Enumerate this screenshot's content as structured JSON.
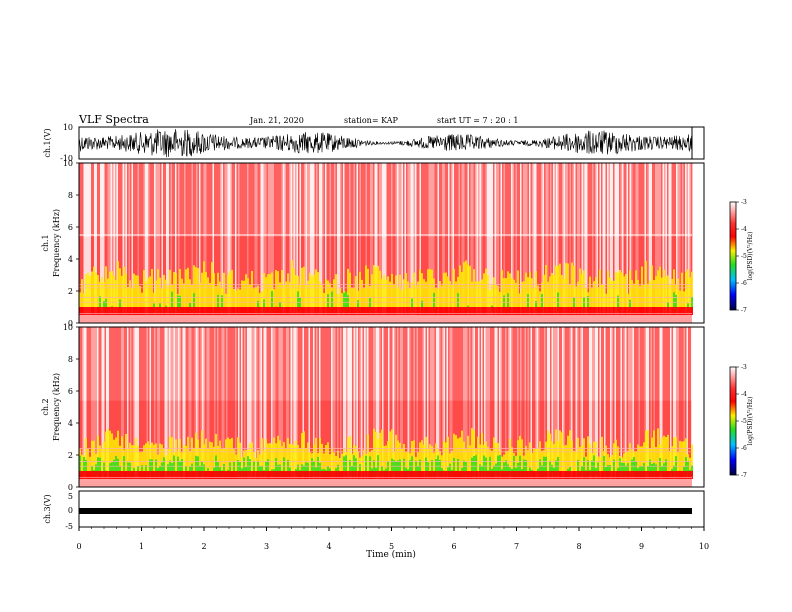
{
  "header": {
    "title": "VLF Spectra",
    "date": "Jan. 21, 2020",
    "station": "station= KAP",
    "start": "start  UT =   7 : 20 : 1"
  },
  "chart_data": [
    {
      "type": "line",
      "name": "ch1-waveform",
      "ylabel": "ch.1(V)",
      "ylim": [
        -10,
        10
      ],
      "yticks": [
        "10",
        "-10"
      ],
      "xlim": [
        0,
        10
      ]
    },
    {
      "type": "heatmap",
      "name": "ch1-spectrogram",
      "ylabel": "ch.1\nFrequency (kHz)",
      "ylim": [
        0,
        10
      ],
      "yticks": [
        "0",
        "2",
        "4",
        "6",
        "8",
        "10"
      ],
      "xlim": [
        0,
        9.85
      ],
      "colorbar": {
        "label": "log(PSD)(V²/Hz)",
        "range": [
          -7,
          -3
        ],
        "ticks": [
          "-3",
          "-4",
          "-5",
          "-6",
          "-7"
        ]
      }
    },
    {
      "type": "heatmap",
      "name": "ch2-spectrogram",
      "ylabel": "ch.2\nFrequency (kHz)",
      "ylim": [
        0,
        10
      ],
      "yticks": [
        "0",
        "2",
        "4",
        "6",
        "8",
        "10"
      ],
      "xlim": [
        0,
        9.85
      ],
      "colorbar": {
        "label": "log(PSD)(V²/Hz)",
        "range": [
          -7,
          -3
        ],
        "ticks": [
          "-3",
          "-4",
          "-5",
          "-6",
          "-7"
        ]
      }
    },
    {
      "type": "line",
      "name": "ch3-waveform",
      "ylabel": "ch.3(V)",
      "ylim": [
        -5,
        5
      ],
      "yticks": [
        "5",
        "0",
        "-5"
      ],
      "xlim": [
        0,
        10
      ],
      "xlabel": "Time  (min)",
      "xticks": [
        "0",
        "1",
        "2",
        "3",
        "4",
        "5",
        "6",
        "7",
        "8",
        "9",
        "10"
      ]
    }
  ],
  "colors": {
    "spectro_high": "#ff0000",
    "spectro_mid": "#ffee00",
    "spectro_green": "#22dd22",
    "trace": "#000000"
  }
}
